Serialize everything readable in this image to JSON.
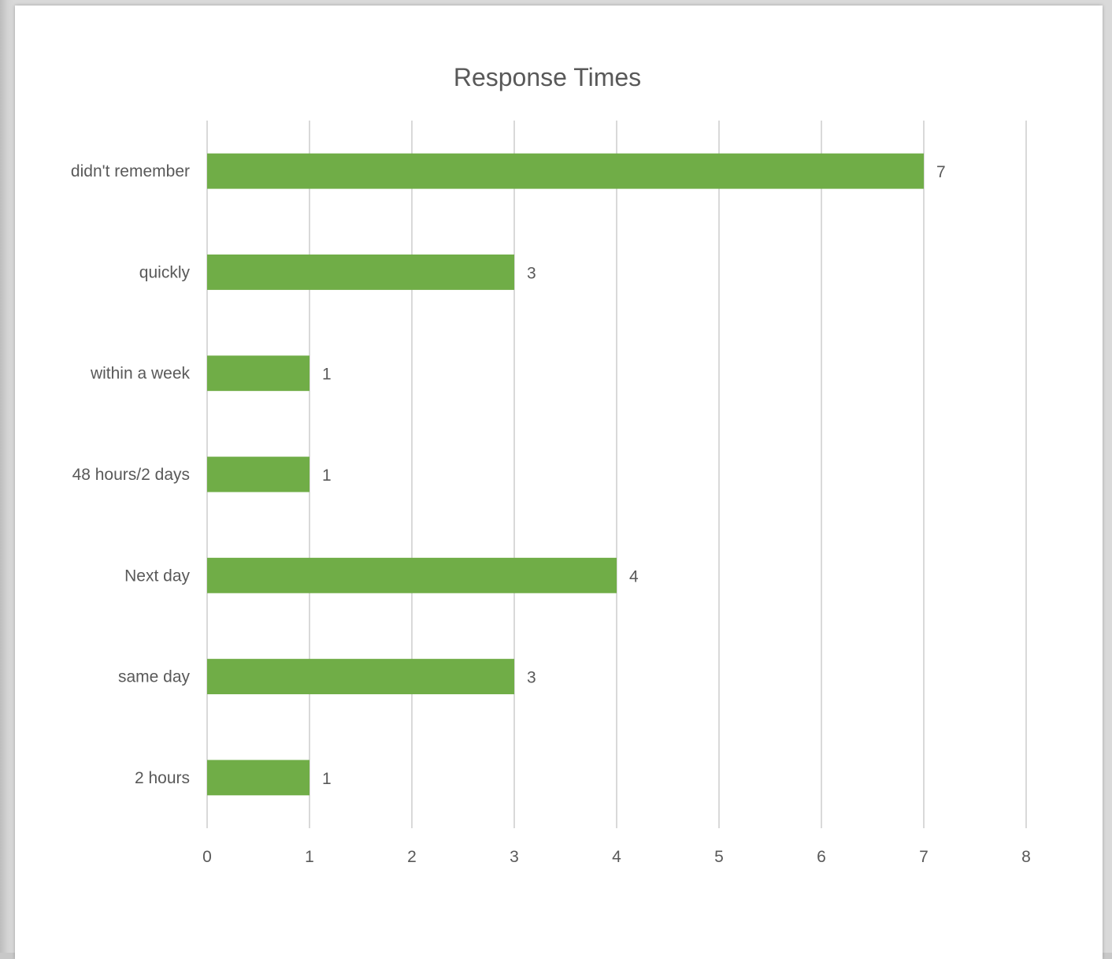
{
  "chart_data": {
    "type": "bar",
    "orientation": "horizontal",
    "title": "Response Times",
    "categories": [
      "didn't remember",
      "quickly",
      "within a week",
      "48 hours/2 days",
      "Next day",
      "same day",
      "2 hours"
    ],
    "values": [
      7,
      3,
      1,
      1,
      4,
      3,
      1
    ],
    "xlim": [
      0,
      8
    ],
    "xticks": [
      "0",
      "1",
      "2",
      "3",
      "4",
      "5",
      "6",
      "7",
      "8"
    ],
    "grid": true,
    "legend": "none",
    "bar_color": "#70AD47",
    "grid_color": "#D9D9D9",
    "text_color": "#595959"
  }
}
